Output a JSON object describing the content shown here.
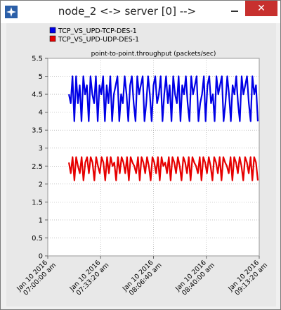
{
  "window": {
    "title": "node_2 <-> server [0] -->",
    "icon": "star-app-icon",
    "close_label": "✕",
    "colors": {
      "close": "#c7302e",
      "panel": "#e8e8e8"
    }
  },
  "chart_data": {
    "type": "line",
    "title": "point-to-point.throughput (packets/sec)",
    "xlabel": "",
    "ylabel": "",
    "ylim": [
      0,
      5.5
    ],
    "yticks": [
      0,
      0.5,
      1,
      1.5,
      2,
      2.5,
      3,
      3.5,
      4,
      4.5,
      5,
      5.5
    ],
    "ytick_labels": [
      "0",
      "0.5",
      "1",
      "1.5",
      "2",
      "2.5",
      "3",
      "3.5",
      "4",
      "4.5",
      "5",
      "5.5"
    ],
    "xtick_labels": [
      [
        "Jan 10 2016",
        "07:00:00 am"
      ],
      [
        "Jan 10 2016",
        "07:33:20 am"
      ],
      [
        "Jan 10 2016",
        "08:06:40 am"
      ],
      [
        "Jan 10 2016",
        "08:40:00 am"
      ],
      [
        "Jan 10 2016",
        "09:13:20 am"
      ]
    ],
    "legend_position": "top-left",
    "series": [
      {
        "name": "TCP_VS_UPD-TCP-DES-1",
        "color": "#0000e6",
        "values": [
          4.5,
          4.25,
          5,
          3.75,
          5,
          4.25,
          4.75,
          3.75,
          5,
          4.5,
          4.75,
          3.75,
          5,
          4.5,
          4.25,
          5,
          3.75,
          4.75,
          4.5,
          5,
          3.75,
          4.75,
          4.25,
          5,
          3.75,
          4.5,
          4.75,
          5,
          3.75,
          4.5,
          4.25,
          5,
          4.5,
          3.75,
          4.75,
          5,
          4.25,
          3.75,
          5,
          4.5,
          4.75,
          5,
          3.75,
          4.25,
          5,
          4.5,
          3.75,
          4.75,
          5,
          4.25,
          4.5,
          5,
          3.75,
          4.5,
          5,
          4.25,
          4.75,
          3.75,
          5,
          4.5,
          4.25,
          5,
          3.75,
          4.75,
          4.5,
          5,
          4.25,
          3.75,
          5,
          4.5,
          4.75,
          5,
          3.75,
          4.25,
          4.5,
          5,
          3.75,
          4.75,
          5,
          4.25,
          4.5,
          3.75,
          5,
          4.5,
          4.75,
          5,
          3.75,
          4.25,
          5,
          4.5,
          3.75,
          4.75,
          4.5,
          5,
          4.25,
          3.75,
          5,
          4.5,
          4.75,
          5,
          4.25,
          3.75,
          5,
          4.5,
          4.75,
          3.75
        ],
        "x_start_fraction": 0.1,
        "x_end_fraction": 1.0
      },
      {
        "name": "TCP_VS_UPD-UDP-DES-1",
        "color": "#e60000",
        "values": [
          2.6,
          2.3,
          2.75,
          2.1,
          2.75,
          2.5,
          2.3,
          2.75,
          2.1,
          2.6,
          2.75,
          2.3,
          2.75,
          2.6,
          2.1,
          2.75,
          2.5,
          2.3,
          2.75,
          2.6,
          2.1,
          2.75,
          2.3,
          2.75,
          2.5,
          2.6,
          2.1,
          2.75,
          2.3,
          2.75,
          2.6,
          2.3,
          2.75,
          2.1,
          2.75,
          2.6,
          2.5,
          2.3,
          2.75,
          2.1,
          2.75,
          2.6,
          2.3,
          2.75,
          2.5,
          2.1,
          2.75,
          2.6,
          2.3,
          2.75,
          2.1,
          2.75,
          2.5,
          2.6,
          2.3,
          2.75,
          2.1,
          2.75,
          2.6,
          2.3,
          2.75,
          2.5,
          2.1,
          2.75,
          2.6,
          2.3,
          2.75,
          2.1,
          2.75,
          2.6,
          2.5,
          2.3,
          2.75,
          2.1,
          2.75,
          2.6,
          2.3,
          2.75,
          2.5,
          2.1,
          2.75,
          2.6,
          2.3,
          2.75,
          2.1,
          2.75,
          2.6,
          2.5,
          2.3,
          2.75,
          2.1,
          2.75,
          2.6,
          2.3,
          2.75,
          2.5,
          2.1,
          2.75,
          2.6,
          2.3,
          2.75,
          2.1,
          2.75,
          2.6,
          2.1
        ],
        "x_start_fraction": 0.1,
        "x_end_fraction": 1.0
      }
    ]
  }
}
